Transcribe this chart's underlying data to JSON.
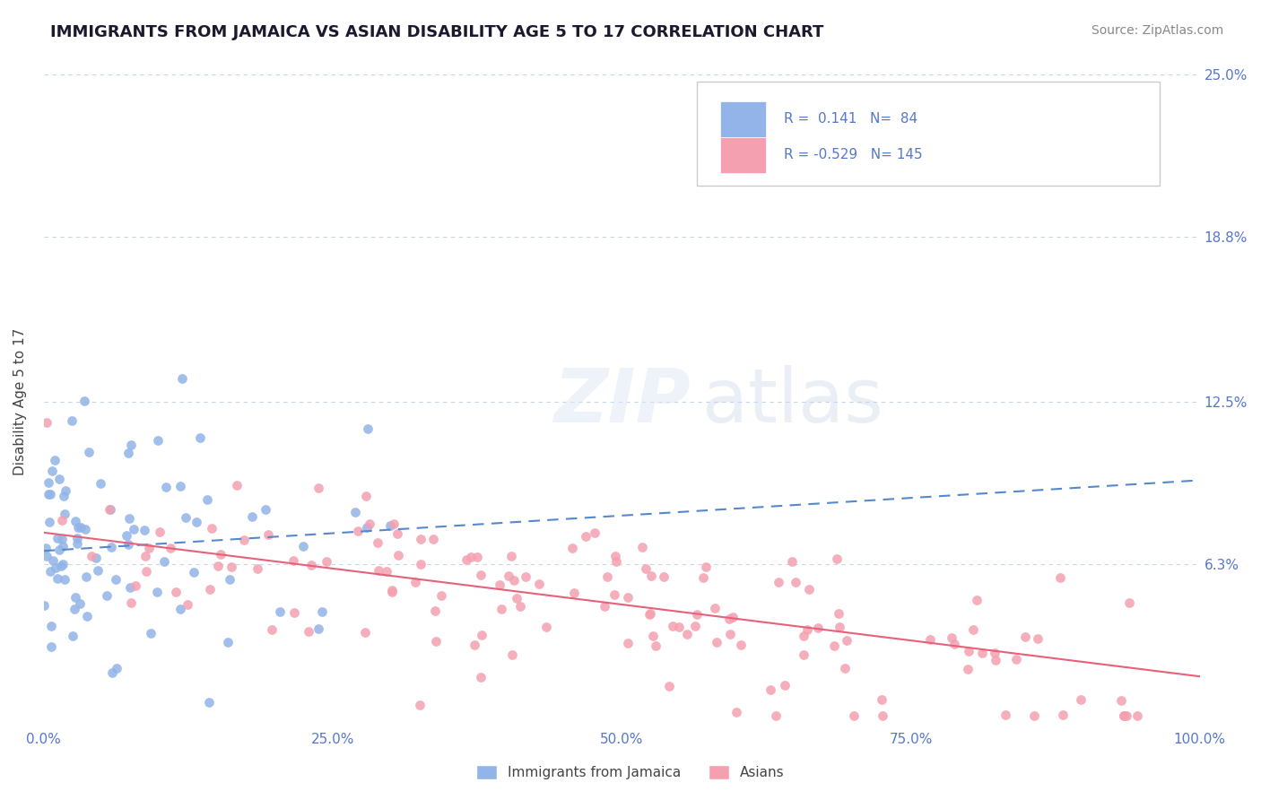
{
  "title": "IMMIGRANTS FROM JAMAICA VS ASIAN DISABILITY AGE 5 TO 17 CORRELATION CHART",
  "source": "Source: ZipAtlas.com",
  "xlabel": "",
  "ylabel": "Disability Age 5 to 17",
  "xlim": [
    0,
    100
  ],
  "ylim": [
    0,
    25
  ],
  "yticks": [
    0,
    6.3,
    12.5,
    18.8,
    25.0
  ],
  "xticks": [
    0,
    25,
    50,
    75,
    100
  ],
  "xtick_labels": [
    "0.0%",
    "25.0%",
    "50.0%",
    "75.0%",
    "100.0%"
  ],
  "ytick_labels": [
    "",
    "6.3%",
    "12.5%",
    "18.8%",
    "25.0%"
  ],
  "series1_color": "#92b4e8",
  "series2_color": "#f4a0b0",
  "trendline1_color": "#5588cc",
  "trendline2_color": "#e8607a",
  "R1": 0.141,
  "N1": 84,
  "R2": -0.529,
  "N2": 145,
  "legend1": "Immigrants from Jamaica",
  "legend2": "Asians",
  "background_color": "#ffffff",
  "grid_color": "#c8d4e8",
  "title_color": "#1a1a2e",
  "label_color": "#5577cc",
  "watermark": "ZIPatlas",
  "seed1": 42,
  "seed2": 123,
  "trendline1_start_x": 0,
  "trendline1_end_x": 100,
  "trendline1_start_y": 6.8,
  "trendline1_end_y": 9.5,
  "trendline2_start_x": 0,
  "trendline2_end_x": 100,
  "trendline2_start_y": 7.5,
  "trendline2_end_y": 2.0
}
